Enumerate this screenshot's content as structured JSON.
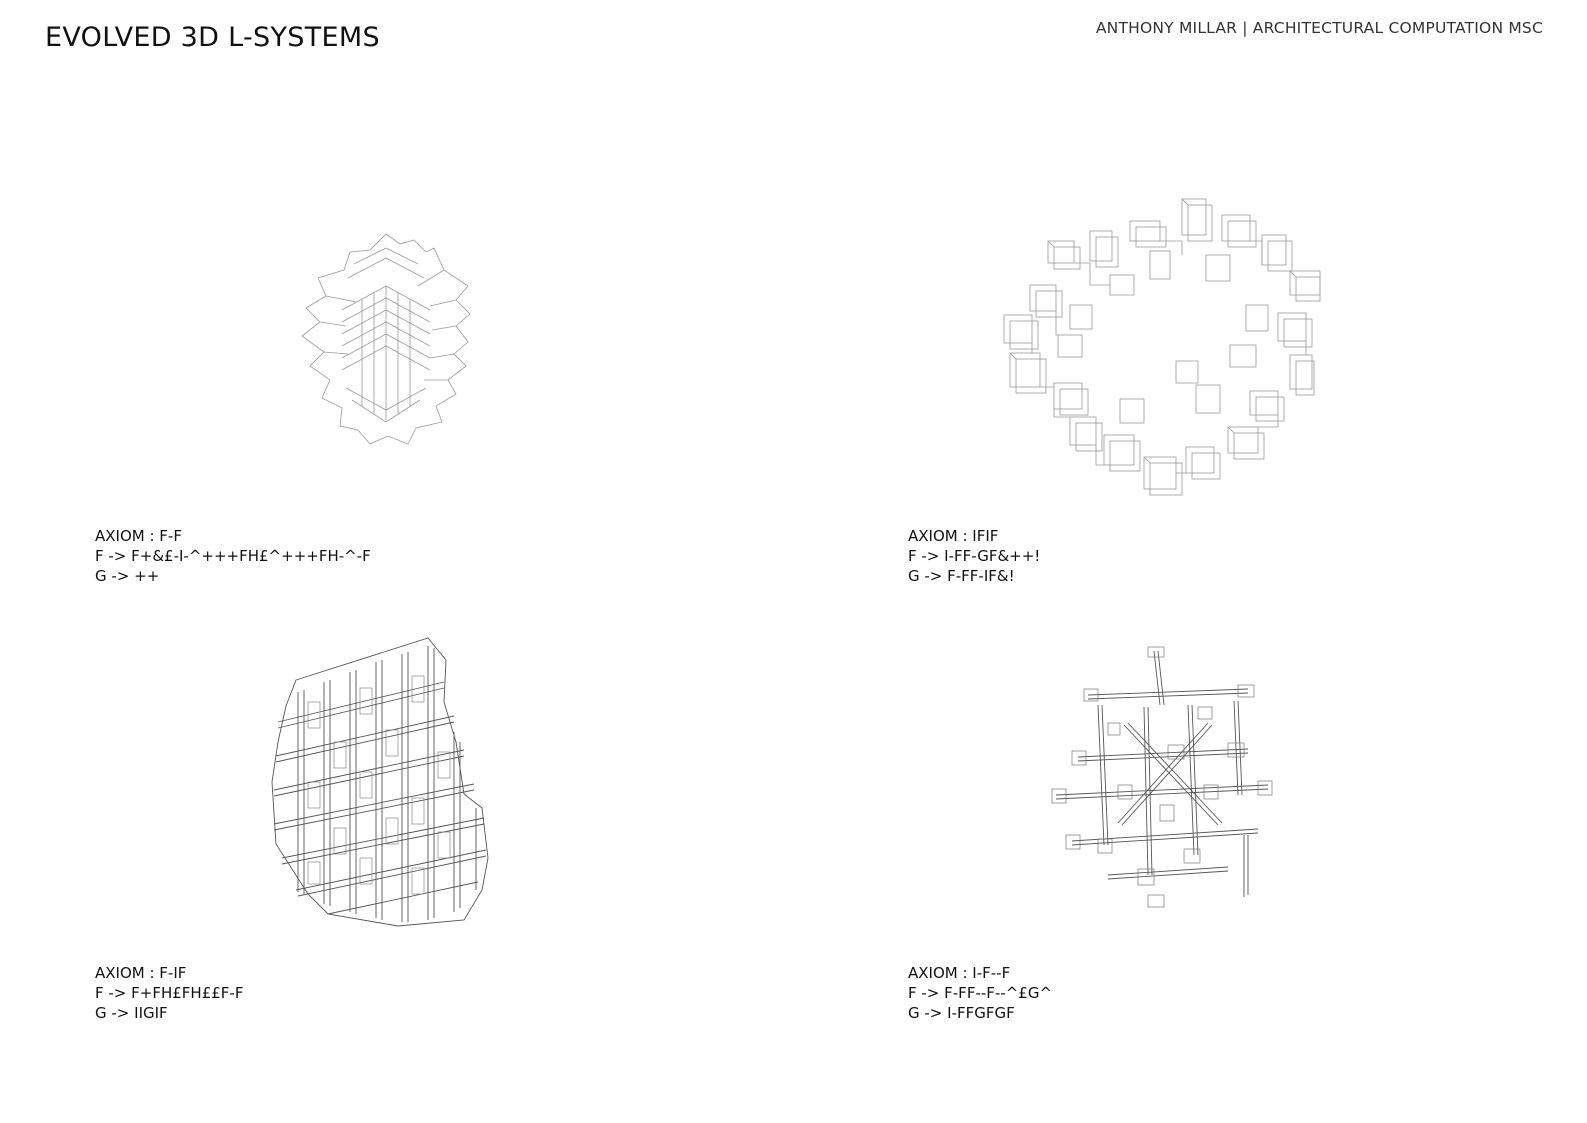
{
  "header": {
    "title": "EVOLVED 3D L-SYSTEMS",
    "author": "ANTHONY MILLAR | ARCHITECTURAL COMPUTATION MSC"
  },
  "systems": [
    {
      "axiom": "AXIOM : F-F",
      "rule_f": "F -> F+&£-I-^+++FH£^+++FH-^-F",
      "rule_g": "G -> ++"
    },
    {
      "axiom": "AXIOM : IFIF",
      "rule_f": "F -> I-FF-GF&++!",
      "rule_g": "G -> F-FF-IF&!"
    },
    {
      "axiom": "AXIOM : F-IF",
      "rule_f": "F -> F+FH£FH££F-F",
      "rule_g": "G -> IIGIF"
    },
    {
      "axiom": "AXIOM : I-F--F",
      "rule_f": "F -> F-FF--F--^£G^",
      "rule_g": "G -> I-FFGFGF"
    }
  ]
}
